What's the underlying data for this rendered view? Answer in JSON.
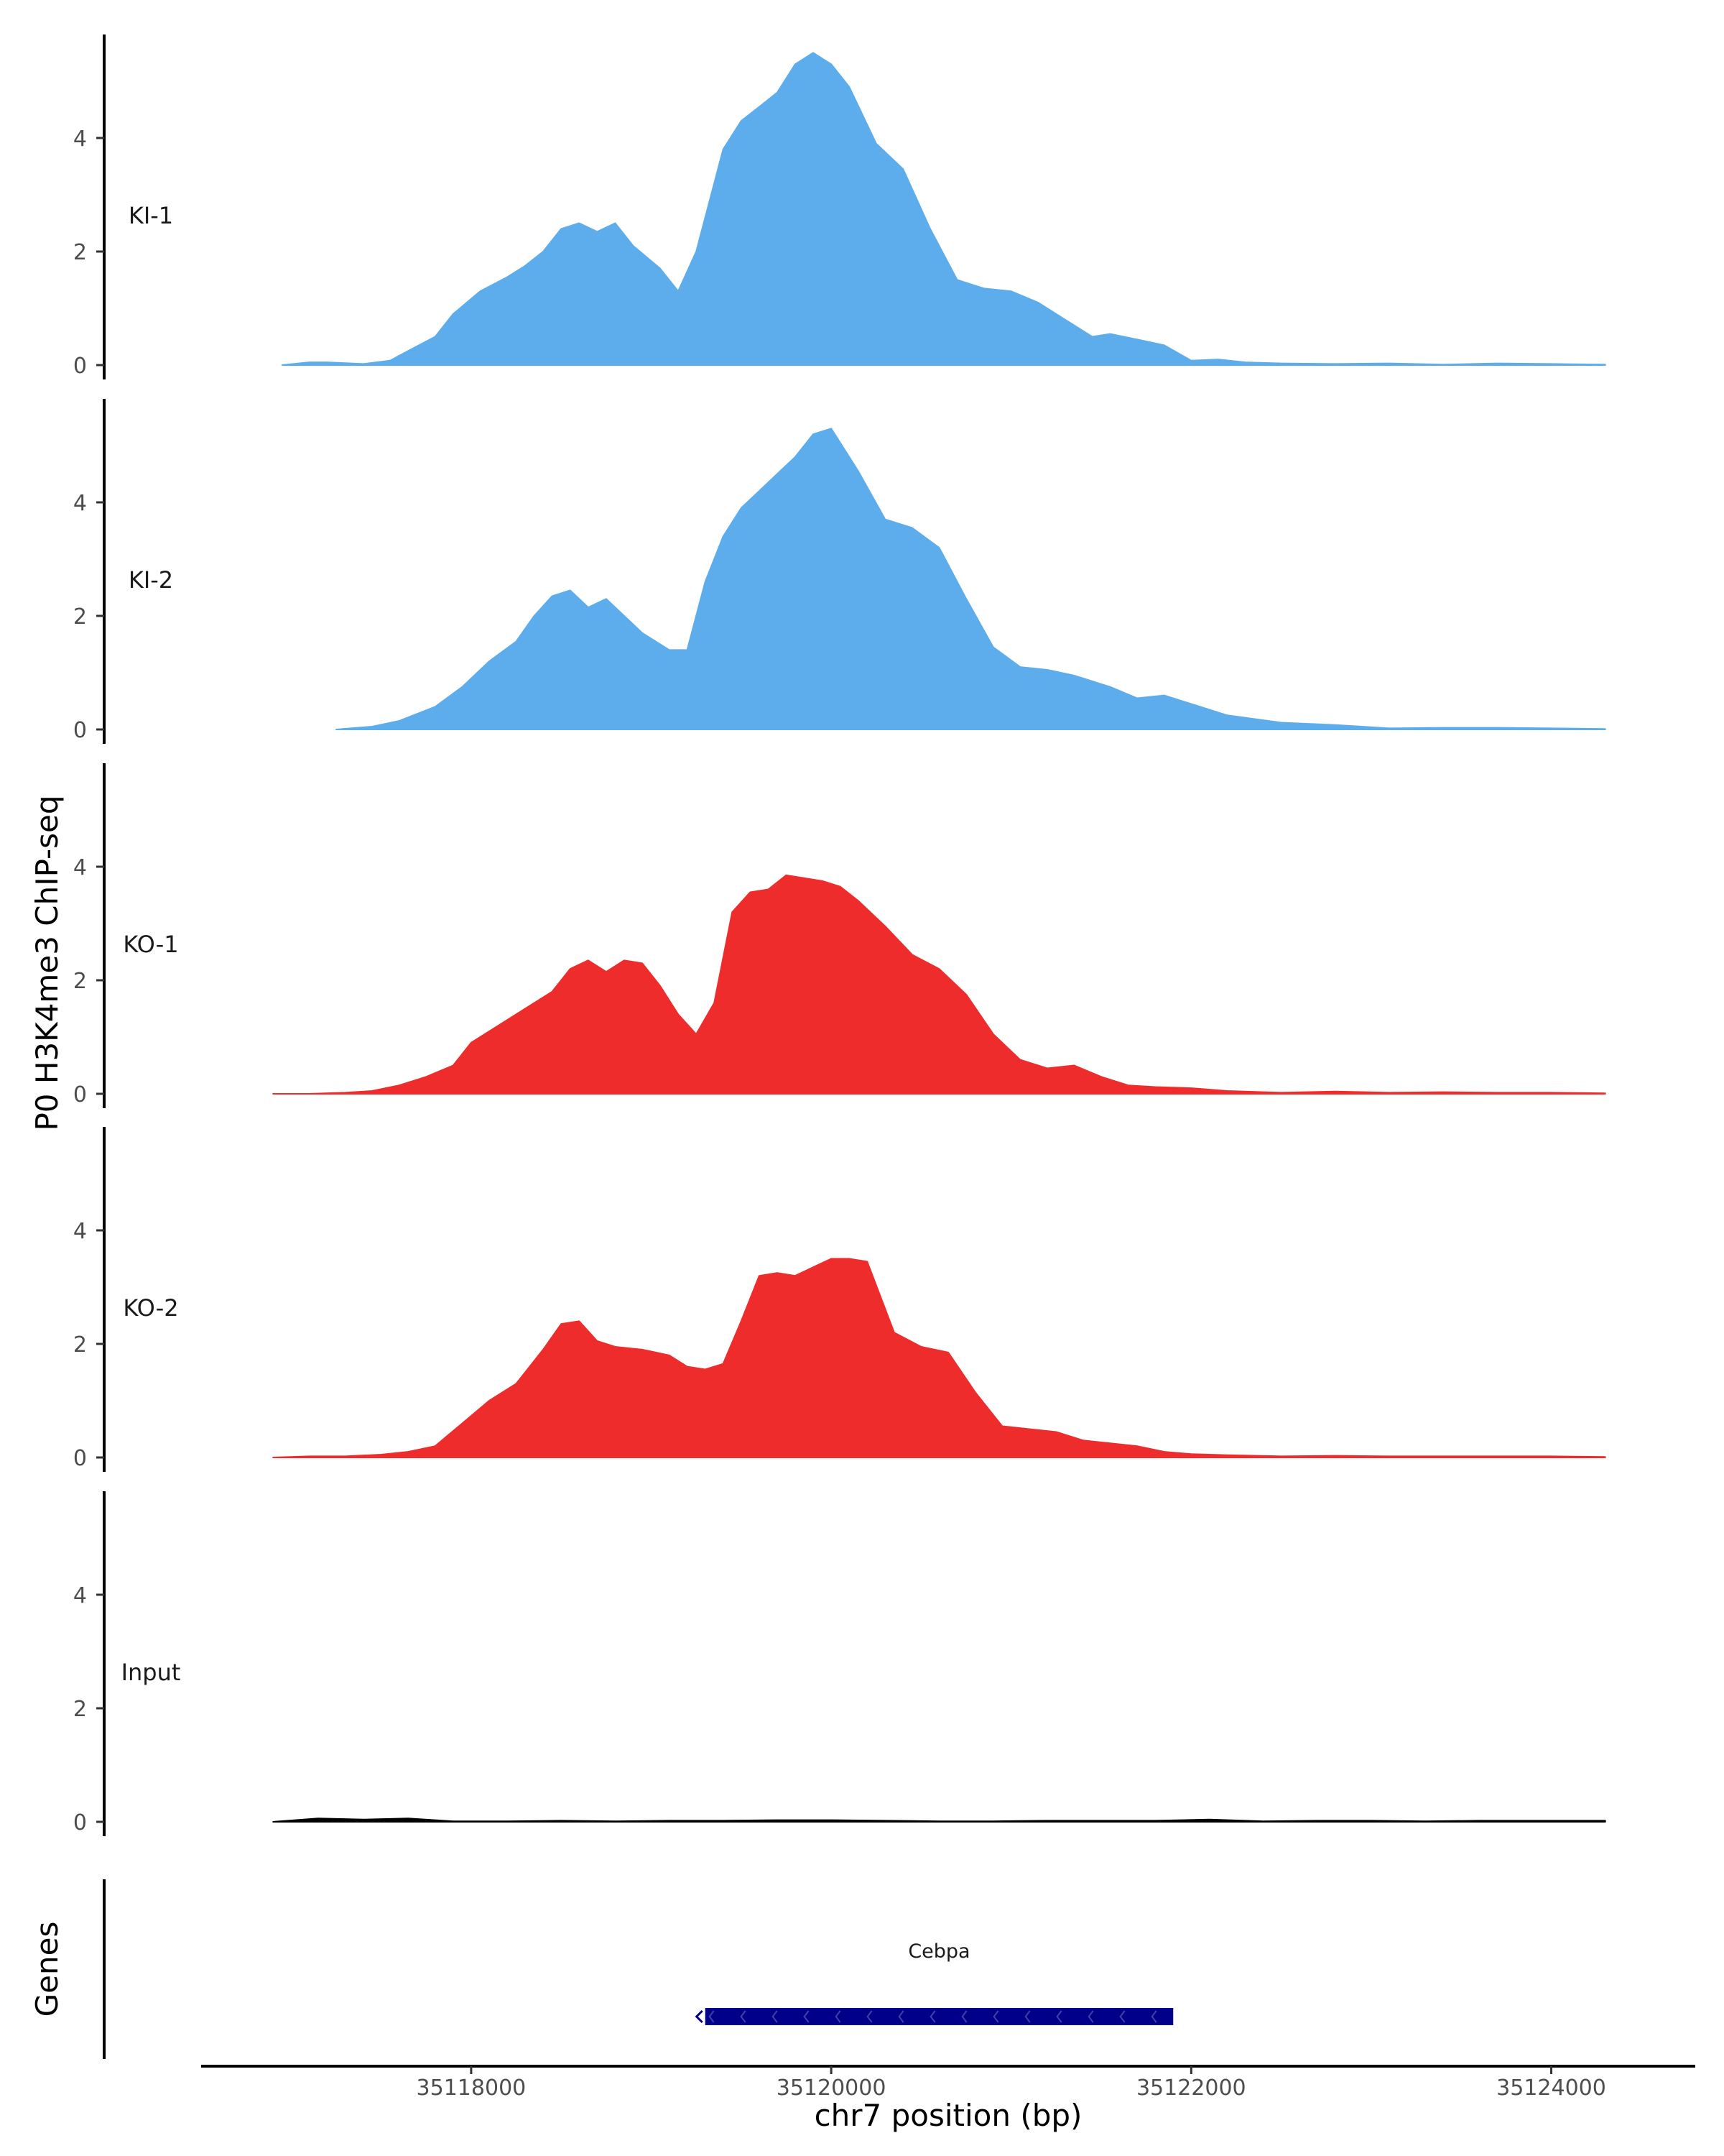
{
  "chart_data": {
    "type": "area",
    "ylabel": "P0 H3K4me3 ChIP-seq",
    "xlabel": "chr7 position (bp)",
    "x_range": [
      35116500,
      35124800
    ],
    "xticks": [
      35118000,
      35120000,
      35122000,
      35124000
    ],
    "xtick_labels": [
      "35118000",
      "35120000",
      "35122000",
      "35124000"
    ],
    "ylim": [
      0,
      5.8
    ],
    "yticks": [
      0,
      2,
      4
    ],
    "ytick_labels": [
      "0",
      "2",
      "4"
    ],
    "series": [
      {
        "name": "KI-1",
        "color": "#5DADEC",
        "x": [
          35116950,
          35117100,
          35117200,
          35117400,
          35117550,
          35117650,
          35117800,
          35117900,
          35118050,
          35118200,
          35118300,
          35118400,
          35118500,
          35118600,
          35118700,
          35118800,
          35118900,
          35119050,
          35119150,
          35119250,
          35119400,
          35119500,
          35119600,
          35119700,
          35119800,
          35119900,
          35120000,
          35120100,
          35120250,
          35120400,
          35120550,
          35120700,
          35120850,
          35121000,
          35121150,
          35121300,
          35121450,
          35121550,
          35121700,
          35121850,
          35122000,
          35122150,
          35122300,
          35122500,
          35122800,
          35123100,
          35123400,
          35123700,
          35124000,
          35124300
        ],
        "y": [
          0.0,
          0.05,
          0.05,
          0.02,
          0.08,
          0.25,
          0.5,
          0.9,
          1.3,
          1.55,
          1.75,
          2.0,
          2.4,
          2.5,
          2.35,
          2.5,
          2.1,
          1.7,
          1.3,
          2.0,
          3.8,
          4.3,
          4.55,
          4.8,
          5.3,
          5.5,
          5.3,
          4.9,
          3.9,
          3.45,
          2.4,
          1.5,
          1.35,
          1.3,
          1.1,
          0.8,
          0.5,
          0.55,
          0.45,
          0.35,
          0.08,
          0.1,
          0.05,
          0.03,
          0.02,
          0.03,
          0.01,
          0.03,
          0.02,
          0.01
        ]
      },
      {
        "name": "KI-2",
        "color": "#5DADEC",
        "x": [
          35117250,
          35117450,
          35117600,
          35117800,
          35117950,
          35118100,
          35118250,
          35118350,
          35118450,
          35118550,
          35118650,
          35118750,
          35118850,
          35118950,
          35119100,
          35119200,
          35119300,
          35119400,
          35119500,
          35119600,
          35119700,
          35119800,
          35119900,
          35120000,
          35120150,
          35120300,
          35120450,
          35120600,
          35120750,
          35120900,
          35121050,
          35121200,
          35121350,
          35121550,
          35121700,
          35121850,
          35122000,
          35122200,
          35122500,
          35122800,
          35123100,
          35123400,
          35123700,
          35124000,
          35124300
        ],
        "y": [
          0.0,
          0.05,
          0.15,
          0.4,
          0.75,
          1.2,
          1.55,
          2.0,
          2.35,
          2.45,
          2.15,
          2.3,
          2.0,
          1.7,
          1.4,
          1.4,
          2.6,
          3.4,
          3.9,
          4.2,
          4.5,
          4.8,
          5.2,
          5.3,
          4.55,
          3.7,
          3.55,
          3.2,
          2.3,
          1.45,
          1.1,
          1.05,
          0.95,
          0.75,
          0.55,
          0.6,
          0.45,
          0.25,
          0.12,
          0.08,
          0.02,
          0.03,
          0.03,
          0.02,
          0.01
        ]
      },
      {
        "name": "KO-1",
        "color": "#EE2C2C",
        "x": [
          35116900,
          35117100,
          35117300,
          35117450,
          35117600,
          35117750,
          35117900,
          35118000,
          35118150,
          35118300,
          35118450,
          35118550,
          35118650,
          35118750,
          35118850,
          35118950,
          35119050,
          35119150,
          35119250,
          35119350,
          35119450,
          35119550,
          35119650,
          35119750,
          35119850,
          35119950,
          35120050,
          35120150,
          35120300,
          35120450,
          35120600,
          35120750,
          35120900,
          35121050,
          35121200,
          35121350,
          35121500,
          35121650,
          35121800,
          35122000,
          35122200,
          35122500,
          35122800,
          35123100,
          35123400,
          35123700,
          35124000,
          35124300
        ],
        "y": [
          0.0,
          0.0,
          0.02,
          0.05,
          0.15,
          0.3,
          0.5,
          0.9,
          1.2,
          1.5,
          1.8,
          2.2,
          2.35,
          2.15,
          2.35,
          2.3,
          1.9,
          1.4,
          1.05,
          1.6,
          3.2,
          3.55,
          3.6,
          3.85,
          3.8,
          3.75,
          3.65,
          3.4,
          2.95,
          2.45,
          2.2,
          1.75,
          1.05,
          0.6,
          0.45,
          0.5,
          0.3,
          0.15,
          0.12,
          0.1,
          0.05,
          0.02,
          0.04,
          0.02,
          0.03,
          0.02,
          0.02,
          0.01
        ]
      },
      {
        "name": "KO-2",
        "color": "#EE2C2C",
        "x": [
          35116900,
          35117100,
          35117300,
          35117500,
          35117650,
          35117800,
          35117950,
          35118100,
          35118250,
          35118400,
          35118500,
          35118600,
          35118700,
          35118800,
          35118950,
          35119100,
          35119200,
          35119300,
          35119400,
          35119500,
          35119600,
          35119700,
          35119800,
          35119900,
          35120000,
          35120100,
          35120200,
          35120350,
          35120500,
          35120650,
          35120800,
          35120950,
          35121100,
          35121250,
          35121400,
          35121550,
          35121700,
          35121850,
          35122000,
          35122200,
          35122500,
          35122800,
          35123100,
          35123400,
          35123700,
          35124000,
          35124300
        ],
        "y": [
          0.0,
          0.02,
          0.02,
          0.05,
          0.1,
          0.2,
          0.6,
          1.0,
          1.3,
          1.9,
          2.35,
          2.4,
          2.05,
          1.95,
          1.9,
          1.8,
          1.6,
          1.55,
          1.65,
          2.4,
          3.2,
          3.25,
          3.2,
          3.35,
          3.5,
          3.5,
          3.45,
          2.2,
          1.95,
          1.85,
          1.15,
          0.55,
          0.5,
          0.45,
          0.3,
          0.25,
          0.2,
          0.1,
          0.06,
          0.04,
          0.02,
          0.03,
          0.02,
          0.02,
          0.02,
          0.02,
          0.01
        ]
      },
      {
        "name": "Input",
        "color": "#000000",
        "x": [
          35116900,
          35117150,
          35117400,
          35117650,
          35117900,
          35118200,
          35118500,
          35118800,
          35119100,
          35119400,
          35119700,
          35120000,
          35120300,
          35120600,
          35120900,
          35121200,
          35121500,
          35121800,
          35122100,
          35122400,
          35122700,
          35123000,
          35123300,
          35123600,
          35123900,
          35124300
        ],
        "y": [
          0.0,
          0.06,
          0.04,
          0.06,
          0.01,
          0.01,
          0.02,
          0.01,
          0.02,
          0.02,
          0.03,
          0.03,
          0.02,
          0.01,
          0.01,
          0.02,
          0.02,
          0.02,
          0.04,
          0.01,
          0.02,
          0.02,
          0.01,
          0.02,
          0.02,
          0.02
        ]
      }
    ],
    "genes_label": "Genes",
    "genes": [
      {
        "name": "Cebpa",
        "start": 35119300,
        "end": 35121900,
        "strand": "-",
        "color": "#00008B"
      }
    ]
  }
}
